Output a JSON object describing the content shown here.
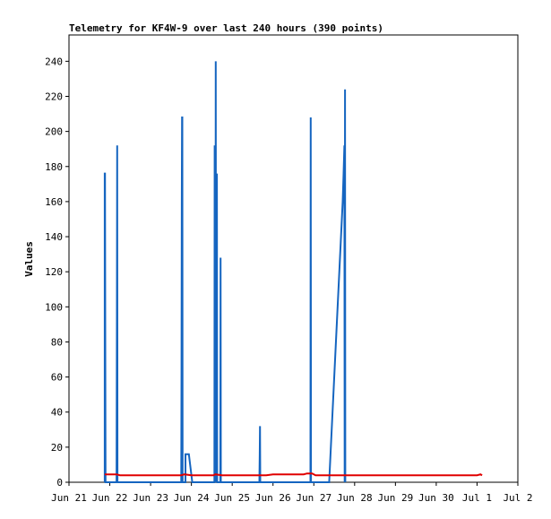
{
  "chart_data": {
    "type": "line",
    "title": "Telemetry for KF4W-9 over last 240 hours (390 points)",
    "xlabel": "",
    "ylabel": "Values",
    "xlim": [
      "Jun 21",
      "Jul 2"
    ],
    "ylim": [
      0,
      255
    ],
    "x_ticks": [
      "Jun 21",
      "Jun 22",
      "Jun 23",
      "Jun 24",
      "Jun 25",
      "Jun 26",
      "Jun 27",
      "Jun 28",
      "Jun 29",
      "Jun 30",
      "Jul 1",
      "Jul 2"
    ],
    "y_ticks": [
      0,
      20,
      40,
      60,
      80,
      100,
      120,
      140,
      160,
      180,
      200,
      220,
      240
    ],
    "grid": false,
    "legend": "none",
    "series": [
      {
        "color": "#1565c0",
        "points": [
          [
            "Jun 21 21:00",
            0
          ],
          [
            "Jun 21 21:00",
            176
          ],
          [
            "Jun 21 21:10",
            176
          ],
          [
            "Jun 21 21:20",
            80
          ],
          [
            "Jun 21 21:30",
            0
          ],
          [
            "Jun 22 04:00",
            0
          ],
          [
            "Jun 22 04:10",
            96
          ],
          [
            "Jun 22 04:20",
            192
          ],
          [
            "Jun 22 04:30",
            0
          ],
          [
            "Jun 23 18:00",
            0
          ],
          [
            "Jun 23 18:10",
            64
          ],
          [
            "Jun 23 18:20",
            160
          ],
          [
            "Jun 23 18:30",
            208
          ],
          [
            "Jun 23 18:40",
            208
          ],
          [
            "Jun 23 18:50",
            0
          ],
          [
            "Jun 23 20:30",
            0
          ],
          [
            "Jun 23 20:30",
            16
          ],
          [
            "Jun 23 22:30",
            16
          ],
          [
            "Jun 24 00:30",
            0
          ],
          [
            "Jun 24 13:30",
            0
          ],
          [
            "Jun 24 13:40",
            192
          ],
          [
            "Jun 24 13:50",
            128
          ],
          [
            "Jun 24 14:00",
            192
          ],
          [
            "Jun 24 14:10",
            0
          ],
          [
            "Jun 24 14:20",
            240
          ],
          [
            "Jun 24 14:30",
            0
          ],
          [
            "Jun 24 15:00",
            176
          ],
          [
            "Jun 24 15:10",
            0
          ],
          [
            "Jun 24 17:00",
            0
          ],
          [
            "Jun 24 17:10",
            128
          ],
          [
            "Jun 24 17:20",
            0
          ],
          [
            "Jun 25 16:00",
            0
          ],
          [
            "Jun 25 16:10",
            16
          ],
          [
            "Jun 25 16:20",
            32
          ],
          [
            "Jun 25 16:30",
            0
          ],
          [
            "Jun 26 22:00",
            0
          ],
          [
            "Jun 26 22:10",
            208
          ],
          [
            "Jun 26 22:20",
            0
          ],
          [
            "Jun 27 09:00",
            0
          ],
          [
            "Jun 27 17:00",
            160
          ],
          [
            "Jun 27 17:30",
            176
          ],
          [
            "Jun 27 18:00",
            192
          ],
          [
            "Jun 27 18:10",
            0
          ],
          [
            "Jun 27 18:20",
            224
          ],
          [
            "Jun 27 18:30",
            0
          ]
        ]
      },
      {
        "color": "#e00000",
        "points": [
          [
            "Jun 21 21:00",
            4.5
          ],
          [
            "Jun 22 04:00",
            4.5
          ],
          [
            "Jun 22 06:00",
            4
          ],
          [
            "Jun 23 18:00",
            4
          ],
          [
            "Jun 23 20:00",
            4.5
          ],
          [
            "Jun 24 00:00",
            4
          ],
          [
            "Jun 24 13:00",
            4
          ],
          [
            "Jun 24 14:00",
            4.5
          ],
          [
            "Jun 24 18:00",
            4
          ],
          [
            "Jun 25 20:00",
            4
          ],
          [
            "Jun 26 00:00",
            4.5
          ],
          [
            "Jun 26 18:00",
            4.5
          ],
          [
            "Jun 26 20:00",
            5
          ],
          [
            "Jun 26 23:00",
            5
          ],
          [
            "Jun 27 01:00",
            4
          ],
          [
            "Jun 30 12:00",
            4
          ],
          [
            "Jul 1 00:00",
            4
          ],
          [
            "Jul 1 02:00",
            4.5
          ],
          [
            "Jul 1 03:00",
            4
          ]
        ]
      }
    ]
  }
}
